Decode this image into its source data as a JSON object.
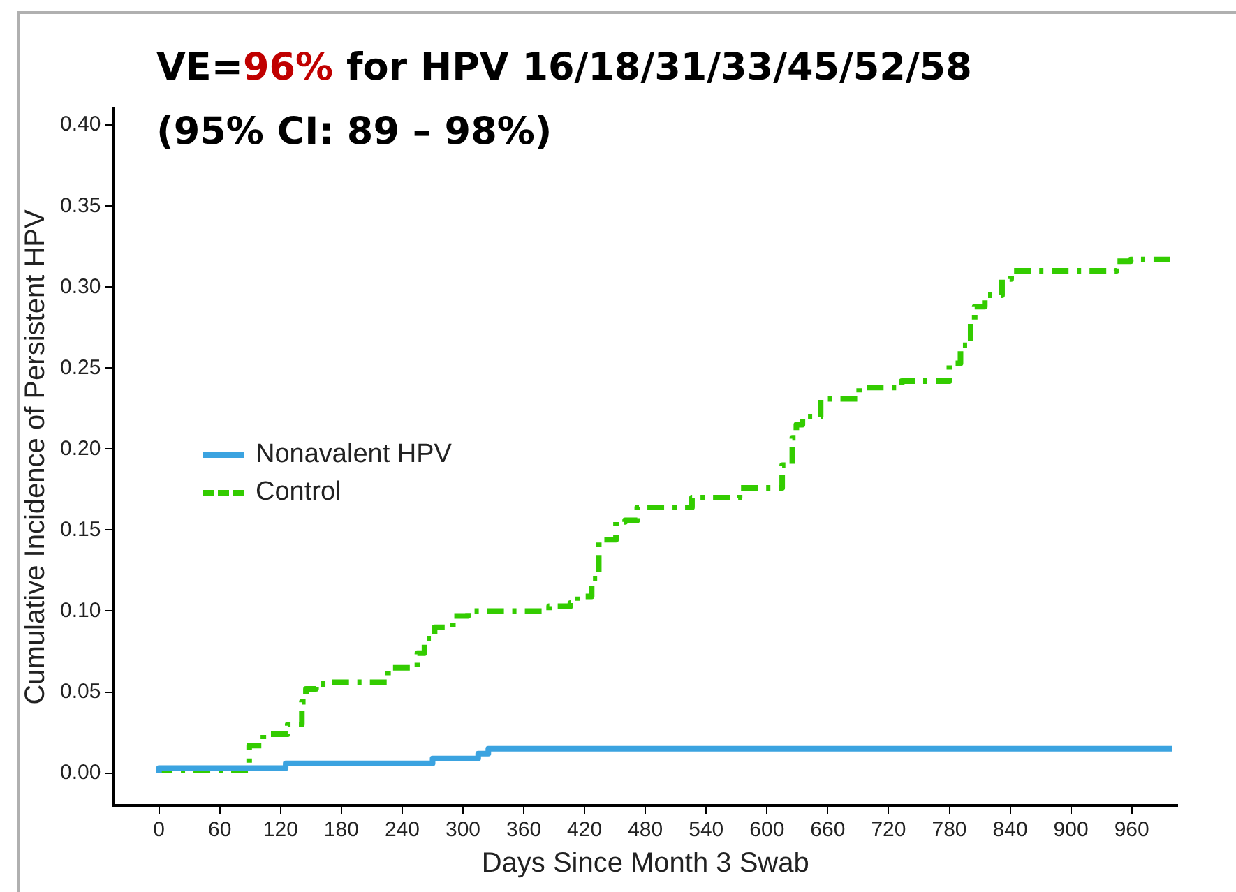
{
  "chart_data": {
    "type": "step",
    "title": "VE=96% for HPV 16/18/31/33/45/52/58",
    "subtitle": "(95% CI: 89 – 98%)",
    "xlabel": "Days Since Month 3 Swab",
    "ylabel": "Cumulative Incidence of Persistent HPV",
    "series": [
      {
        "name": "Nonavalent HPV",
        "color": "#3ba3e0",
        "line_style": "solid",
        "x": [
          0,
          125,
          270,
          315,
          325,
          625,
          1000
        ],
        "values": [
          0,
          0.003,
          0.006,
          0.009,
          0.012,
          0.015,
          0.015
        ]
      },
      {
        "name": "Control",
        "color": "#33cc00",
        "line_style": "dashed",
        "x": [
          0,
          89,
          103,
          127,
          141,
          145,
          155,
          166,
          226,
          255,
          262,
          272,
          290,
          305,
          385,
          406,
          413,
          427,
          434,
          451,
          460,
          472,
          526,
          573,
          615,
          625,
          629,
          635,
          653,
          691,
          733,
          780,
          791,
          801,
          805,
          815,
          832,
          841,
          860,
          945,
          959,
          998
        ],
        "values": [
          0,
          0.002,
          0.017,
          0.024,
          0.03,
          0.044,
          0.052,
          0.055,
          0.056,
          0.065,
          0.074,
          0.083,
          0.09,
          0.097,
          0.1,
          0.103,
          0.105,
          0.109,
          0.12,
          0.144,
          0.155,
          0.156,
          0.164,
          0.17,
          0.176,
          0.19,
          0.207,
          0.215,
          0.22,
          0.231,
          0.238,
          0.242,
          0.253,
          0.264,
          0.279,
          0.288,
          0.295,
          0.305,
          0.31,
          0.31,
          0.316,
          0.317
        ]
      }
    ],
    "xlim": [
      -45,
      1005
    ],
    "xticks": [
      0,
      60,
      120,
      180,
      240,
      300,
      360,
      420,
      480,
      540,
      600,
      660,
      720,
      780,
      840,
      900,
      960
    ],
    "ylim": [
      -0.02,
      0.41
    ],
    "yticks": [
      {
        "value": 0,
        "label": "0.00"
      },
      {
        "value": 0.05,
        "label": "0.05"
      },
      {
        "value": 0.1,
        "label": "0.10"
      },
      {
        "value": 0.15,
        "label": "0.15"
      },
      {
        "value": 0.2,
        "label": "0.20"
      },
      {
        "value": 0.25,
        "label": "0.25"
      },
      {
        "value": 0.3,
        "label": "0.30"
      },
      {
        "value": 0.35,
        "label": "0.35"
      },
      {
        "value": 0.4,
        "label": "0.40"
      }
    ],
    "grid": false,
    "legend": "left"
  }
}
